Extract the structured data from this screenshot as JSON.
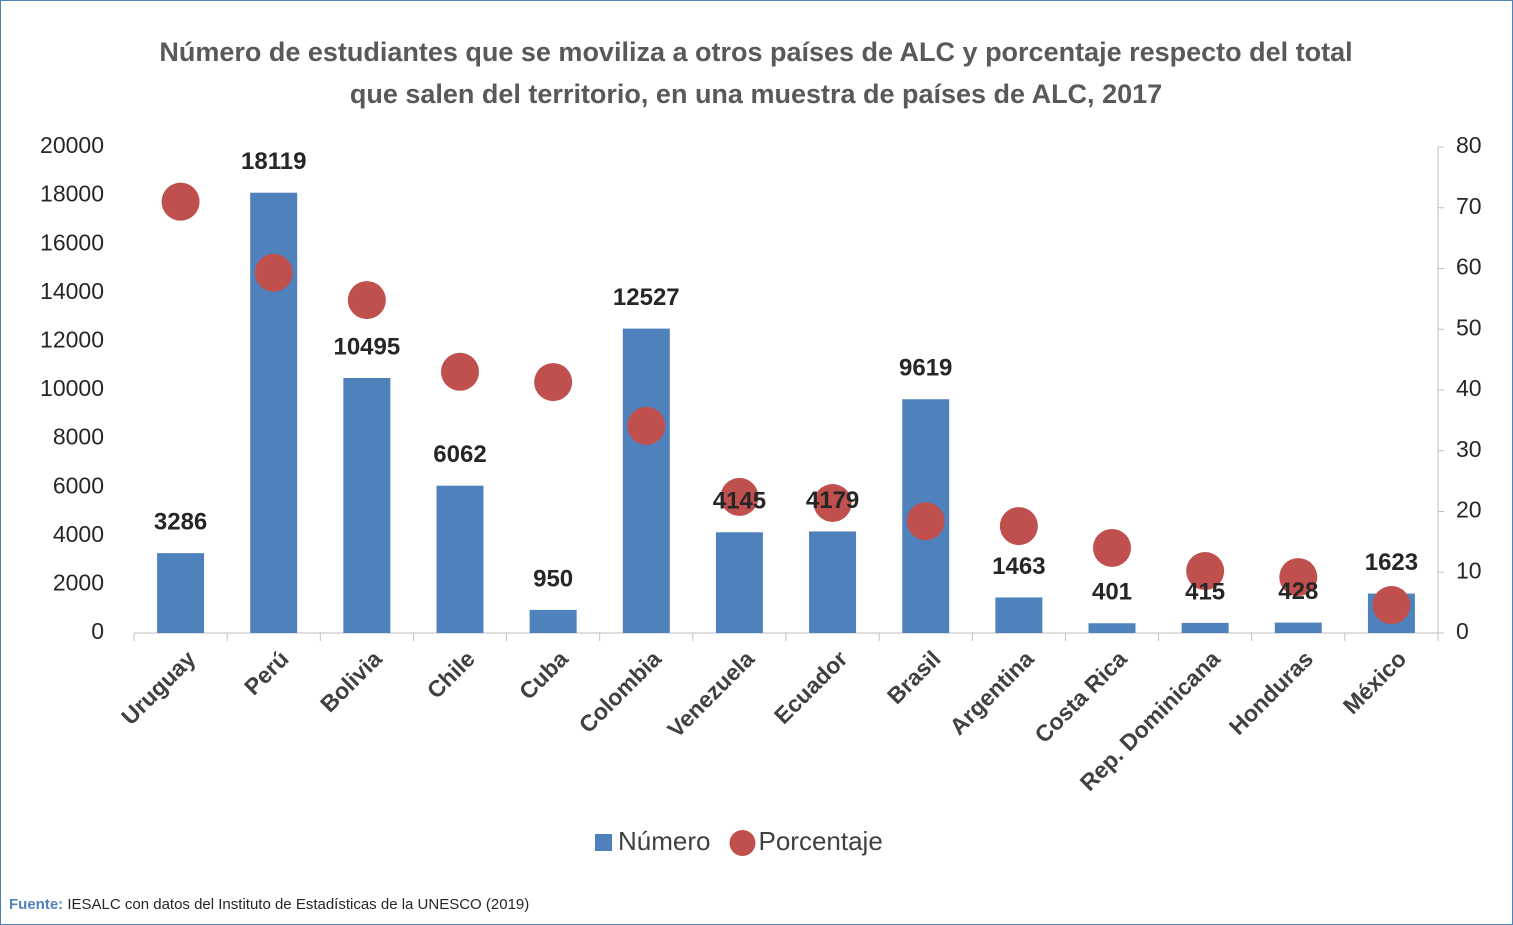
{
  "chart_data": {
    "type": "bar_scatter",
    "title": "Número de estudiantes que se moviliza a otros países de ALC y porcentaje respecto del total que salen del territorio, en una muestra de países de ALC, 2017",
    "categories": [
      "Uruguay",
      "Perú",
      "Bolivia",
      "Chile",
      "Cuba",
      "Colombia",
      "Venezuela",
      "Ecuador",
      "Brasil",
      "Argentina",
      "Costa Rica",
      "Rep. Dominicana",
      "Honduras",
      "México"
    ],
    "series": [
      {
        "name": "Número",
        "color": "#4f81bd",
        "type": "bar",
        "values": [
          3286,
          18119,
          10495,
          6062,
          950,
          12527,
          4145,
          4179,
          9619,
          1463,
          401,
          415,
          428,
          1623
        ]
      },
      {
        "name": "Porcentaje",
        "color": "#c0504d",
        "type": "scatter",
        "axis": "y2",
        "values": [
          71,
          59.3,
          54.8,
          43,
          41.3,
          34.1,
          22.4,
          21.4,
          18.4,
          17.6,
          14,
          10.2,
          9.2,
          4.6
        ]
      }
    ],
    "ylim": [
      0,
      20000
    ],
    "yticks": [
      0,
      2000,
      4000,
      6000,
      8000,
      10000,
      12000,
      14000,
      16000,
      18000,
      20000
    ],
    "y2lim": [
      0,
      80
    ],
    "y2ticks": [
      0,
      10,
      20,
      30,
      40,
      50,
      60,
      70,
      80
    ],
    "legend": "bottom",
    "source_label": "Fuente:",
    "source": "IESALC con datos del Instituto de Estadísticas de la UNESCO (2019)"
  }
}
